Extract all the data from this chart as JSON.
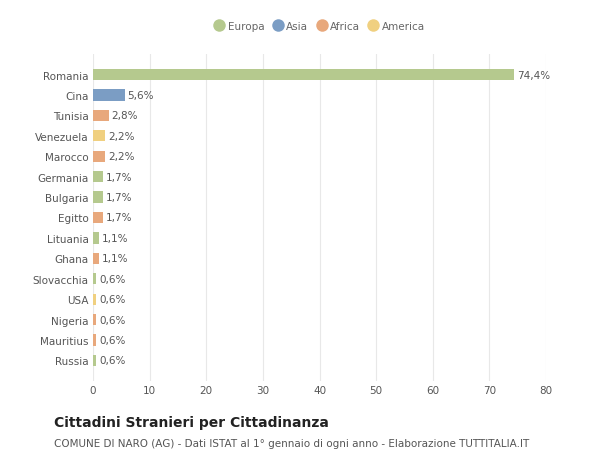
{
  "countries": [
    "Romania",
    "Cina",
    "Tunisia",
    "Venezuela",
    "Marocco",
    "Germania",
    "Bulgaria",
    "Egitto",
    "Lituania",
    "Ghana",
    "Slovacchia",
    "USA",
    "Nigeria",
    "Mauritius",
    "Russia"
  ],
  "values": [
    74.4,
    5.6,
    2.8,
    2.2,
    2.2,
    1.7,
    1.7,
    1.7,
    1.1,
    1.1,
    0.6,
    0.6,
    0.6,
    0.6,
    0.6
  ],
  "labels": [
    "74,4%",
    "5,6%",
    "2,8%",
    "2,2%",
    "2,2%",
    "1,7%",
    "1,7%",
    "1,7%",
    "1,1%",
    "1,1%",
    "0,6%",
    "0,6%",
    "0,6%",
    "0,6%",
    "0,6%"
  ],
  "continents": [
    "Europa",
    "Asia",
    "Africa",
    "America",
    "Africa",
    "Europa",
    "Europa",
    "Africa",
    "Europa",
    "Africa",
    "Europa",
    "America",
    "Africa",
    "Africa",
    "Europa"
  ],
  "continent_colors": {
    "Europa": "#b5c98e",
    "Asia": "#7b9dc4",
    "Africa": "#e8a87c",
    "America": "#f0d080"
  },
  "legend_order": [
    "Europa",
    "Asia",
    "Africa",
    "America"
  ],
  "legend_colors": [
    "#b5c98e",
    "#7b9dc4",
    "#e8a87c",
    "#f0d080"
  ],
  "background_color": "#ffffff",
  "plot_bg_color": "#ffffff",
  "grid_color": "#e8e8e8",
  "title": "Cittadini Stranieri per Cittadinanza",
  "subtitle": "COMUNE DI NARO (AG) - Dati ISTAT al 1° gennaio di ogni anno - Elaborazione TUTTITALIA.IT",
  "xlabel_vals": [
    0,
    10,
    20,
    30,
    40,
    50,
    60,
    70,
    80
  ],
  "xlim": [
    0,
    80
  ],
  "bar_height": 0.55,
  "label_fontsize": 7.5,
  "tick_fontsize": 7.5,
  "title_fontsize": 10,
  "subtitle_fontsize": 7.5
}
